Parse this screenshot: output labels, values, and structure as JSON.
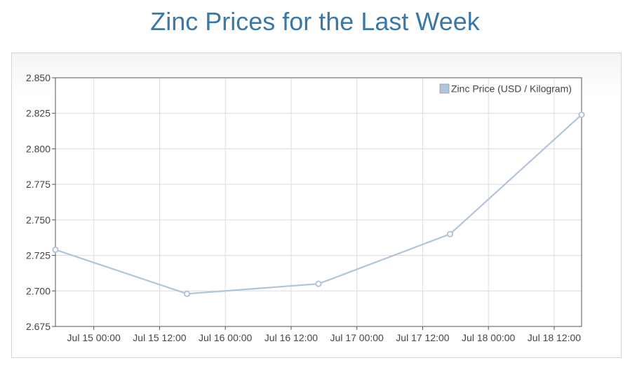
{
  "page": {
    "title": "Zinc Prices for the Last Week"
  },
  "chart_data": {
    "type": "line",
    "title": "Zinc Prices for the Last Week",
    "xlabel": "",
    "ylabel": "",
    "x_ticks": [
      "Jul 15 00:00",
      "Jul 15 12:00",
      "Jul 16 00:00",
      "Jul 16 12:00",
      "Jul 17 00:00",
      "Jul 17 12:00",
      "Jul 18 00:00",
      "Jul 18 12:00"
    ],
    "y_ticks": [
      "2.850",
      "2.825",
      "2.800",
      "2.775",
      "2.750",
      "2.725",
      "2.700",
      "2.675"
    ],
    "xlim": [
      "2014-07-14 17:00",
      "2014-07-18 17:00"
    ],
    "ylim": [
      2.675,
      2.85
    ],
    "grid": true,
    "legend_position": "top-right",
    "series": [
      {
        "name": "Zinc Price (USD / Kilogram)",
        "color": "#b0c4de",
        "points": [
          {
            "x": "2014-07-14 17:00",
            "y": 2.729
          },
          {
            "x": "2014-07-15 17:00",
            "y": 2.698
          },
          {
            "x": "2014-07-16 17:00",
            "y": 2.705
          },
          {
            "x": "2014-07-17 17:00",
            "y": 2.74
          },
          {
            "x": "2014-07-18 17:00",
            "y": 2.824
          }
        ]
      }
    ]
  }
}
